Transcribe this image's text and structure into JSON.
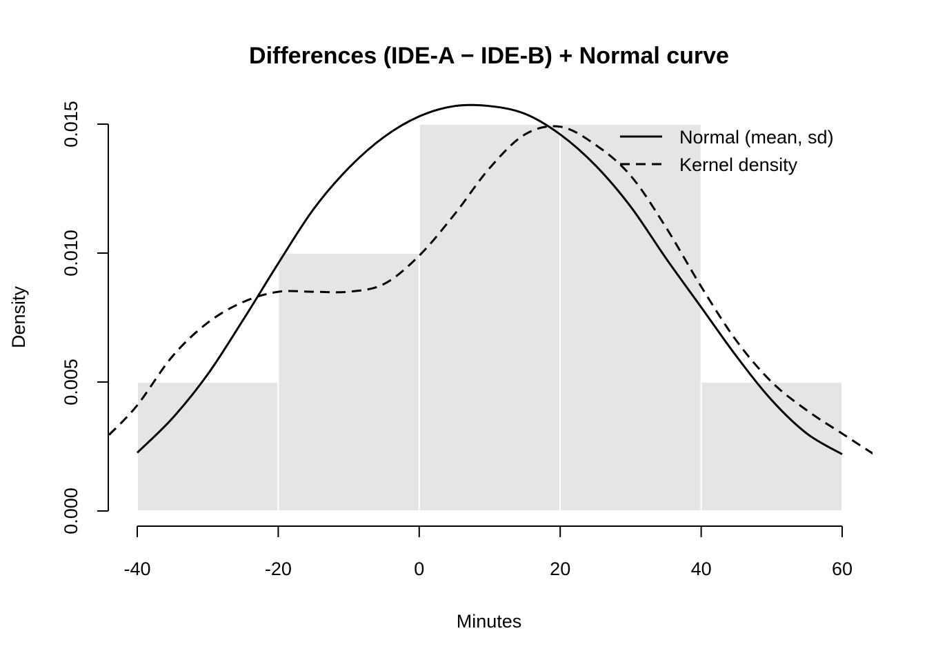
{
  "chart_data": {
    "type": "histogram",
    "title": "Differences (IDE-A − IDE-B) + Normal curve",
    "xlabel": "Minutes",
    "ylabel": "Density",
    "xlim": [
      -44,
      64.5
    ],
    "ylim": [
      0,
      0.0155
    ],
    "x_ticks": [
      -40,
      -20,
      0,
      20,
      40,
      60
    ],
    "x_tick_labels": [
      "-40",
      "-20",
      "0",
      "20",
      "40",
      "60"
    ],
    "y_ticks": [
      0,
      0.005,
      0.01,
      0.015
    ],
    "y_tick_labels": [
      "0.000",
      "0.005",
      "0.010",
      "0.015"
    ],
    "grid": false,
    "bins": [
      {
        "from": -40,
        "to": -20,
        "density": 0.005
      },
      {
        "from": -20,
        "to": 0,
        "density": 0.01
      },
      {
        "from": 0,
        "to": 20,
        "density": 0.015
      },
      {
        "from": 20,
        "to": 40,
        "density": 0.015
      },
      {
        "from": 40,
        "to": 60,
        "density": 0.005
      }
    ],
    "bar_color": "#e5e5e5",
    "bar_border_color": "#ffffff",
    "series": [
      {
        "name": "Normal (mean, sd)",
        "style": "solid",
        "color": "#000000",
        "x": [
          -40,
          -35,
          -30,
          -25,
          -20,
          -15,
          -10,
          -5,
          0,
          5,
          10,
          15,
          20,
          25,
          30,
          35,
          40,
          45,
          50,
          55,
          60
        ],
        "y": [
          0.00226,
          0.0036,
          0.0053,
          0.0074,
          0.0096,
          0.0117,
          0.0133,
          0.0145,
          0.0153,
          0.0157,
          0.0157,
          0.0154,
          0.0146,
          0.0134,
          0.0118,
          0.0098,
          0.0079,
          0.006,
          0.0043,
          0.003,
          0.0022
        ]
      },
      {
        "name": "Kernel density",
        "style": "dashed",
        "color": "#000000",
        "x": [
          -44,
          -40,
          -35,
          -30,
          -25,
          -20,
          -15,
          -10,
          -5,
          0,
          5,
          10,
          15,
          20,
          25,
          30,
          35,
          40,
          45,
          50,
          55,
          60,
          64.5
        ],
        "y": [
          0.00295,
          0.0041,
          0.006,
          0.0073,
          0.0081,
          0.0085,
          0.0085,
          0.0085,
          0.0088,
          0.0099,
          0.0115,
          0.0133,
          0.0146,
          0.0149,
          0.0142,
          0.013,
          0.011,
          0.0087,
          0.0066,
          0.005,
          0.0039,
          0.003,
          0.0022
        ]
      }
    ],
    "legend_position": "top-right"
  }
}
